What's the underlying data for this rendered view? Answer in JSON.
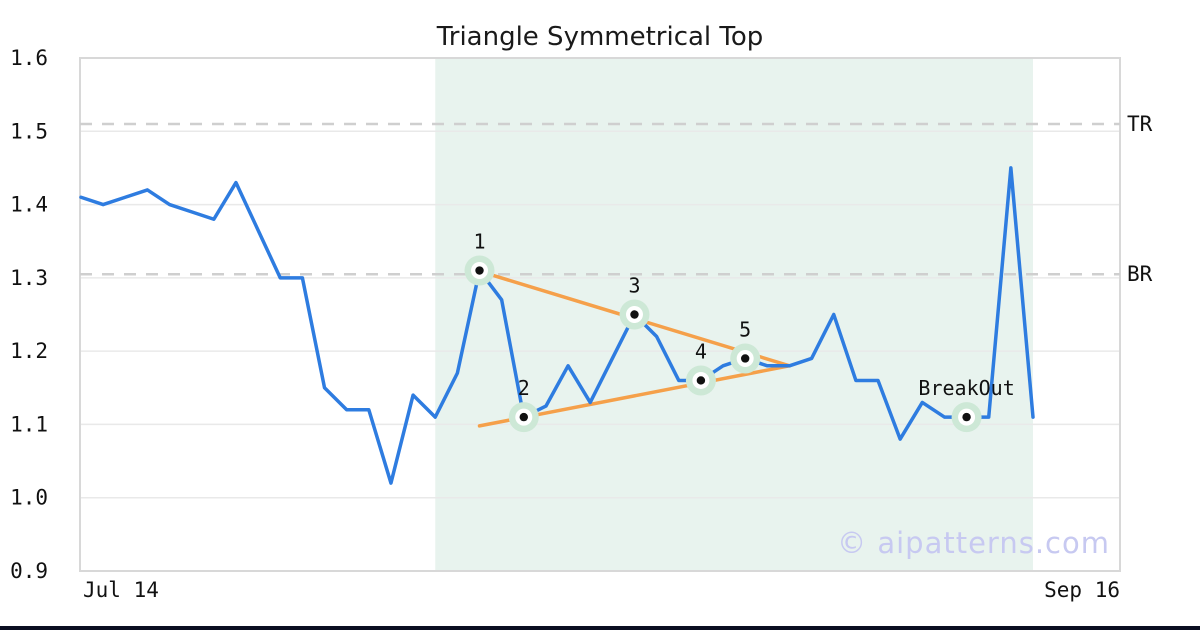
{
  "title": "Triangle Symmetrical Top",
  "watermark": "© aipatterns.com",
  "colors": {
    "line": "#2e7ce0",
    "trendline": "#f5a04a",
    "shade": "#e8f3ee",
    "marker_halo": "#cde8d6",
    "marker_ring": "#ffffff",
    "marker_dot": "#111111",
    "grid": "#e9e9e9",
    "spine": "#d8d8d8",
    "dashed": "#cfcfcf",
    "text": "#111111",
    "watermark_color": "#c7c9f1",
    "bottom_bar": "#0a0e21"
  },
  "chart_data": {
    "type": "line",
    "title": "Triangle Symmetrical Top",
    "x_start_label": "Jul 14",
    "x_end_label": "Sep 16",
    "ylim": [
      0.9,
      1.6
    ],
    "yticks": [
      "0.9",
      "1.0",
      "1.1",
      "1.2",
      "1.3",
      "1.4",
      "1.5",
      "1.6"
    ],
    "grid": "horizontal-only",
    "values": [
      1.41,
      1.4,
      1.41,
      1.42,
      1.4,
      1.39,
      1.38,
      1.43,
      1.365,
      1.3,
      1.3,
      1.15,
      1.12,
      1.12,
      1.02,
      1.14,
      1.11,
      1.17,
      1.31,
      1.27,
      1.11,
      1.125,
      1.18,
      1.13,
      1.19,
      1.25,
      1.22,
      1.16,
      1.16,
      1.18,
      1.19,
      1.18,
      1.18,
      1.19,
      1.25,
      1.16,
      1.16,
      1.08,
      1.13,
      1.11,
      1.11,
      1.11,
      1.45,
      1.11
    ],
    "levels": [
      {
        "label": "TR",
        "value": 1.51
      },
      {
        "label": "BR",
        "value": 1.305
      }
    ],
    "shade_span_idx": [
      16,
      43
    ],
    "trendlines": [
      {
        "name": "upper-trendline",
        "from_idx": 18,
        "from_value": 1.309,
        "to_idx": 32,
        "to_value": 1.18
      },
      {
        "name": "lower-trendline",
        "from_idx": 18,
        "from_value": 1.098,
        "to_idx": 32,
        "to_value": 1.18
      }
    ],
    "points": [
      {
        "label": "1",
        "idx": 18,
        "value": 1.31
      },
      {
        "label": "2",
        "idx": 20,
        "value": 1.11
      },
      {
        "label": "3",
        "idx": 25,
        "value": 1.25
      },
      {
        "label": "4",
        "idx": 28,
        "value": 1.16
      },
      {
        "label": "5",
        "idx": 30,
        "value": 1.19
      },
      {
        "label": "BreakOut",
        "idx": 40,
        "value": 1.11
      }
    ]
  }
}
